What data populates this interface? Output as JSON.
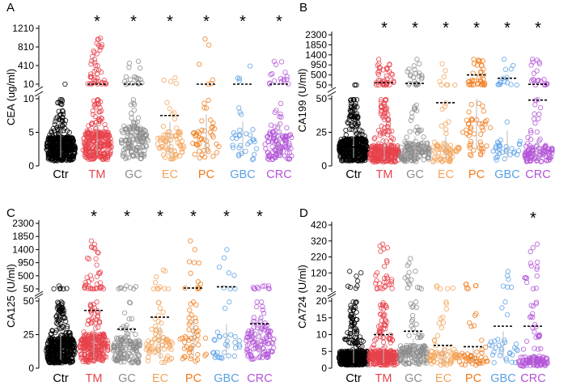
{
  "figure": {
    "categories": [
      "Ctr",
      "TM",
      "GC",
      "EC",
      "PC",
      "GBC",
      "CRC"
    ],
    "colors": [
      "#000000",
      "#e8424b",
      "#8c8c8c",
      "#f3a45c",
      "#f07a1a",
      "#5aa0e6",
      "#b354d8"
    ],
    "significance_marker": "*"
  },
  "chart_data": [
    {
      "panel": "A",
      "type": "scatter",
      "ylabel": "CEA (ug/ml)",
      "upper_ticks": [
        "10",
        "410",
        "810",
        "1210"
      ],
      "upper_range": [
        10,
        1210
      ],
      "lower_ticks": [
        "0",
        "5",
        "10"
      ],
      "lower_range": [
        0,
        10
      ],
      "star_categories": [
        "TM",
        "GC",
        "EC",
        "PC",
        "GBC",
        "CRC"
      ],
      "counts": [
        420,
        260,
        140,
        70,
        45,
        30,
        110
      ],
      "medians": [
        2.5,
        3.0,
        3.5,
        3.0,
        3.5,
        3.0,
        3.0
      ],
      "lower_means": [
        null,
        null,
        null,
        7.5,
        null,
        null,
        null
      ],
      "upper_means": [
        null,
        10,
        10,
        null,
        10,
        10,
        10
      ],
      "upper_counts": [
        1,
        45,
        20,
        4,
        6,
        4,
        16
      ],
      "spread_upper": [
        10,
        1000,
        500,
        150,
        980,
        400,
        500
      ]
    },
    {
      "panel": "B",
      "type": "scatter",
      "ylabel": "CA199 (U/ml)",
      "upper_ticks": [
        "50",
        "500",
        "950",
        "1400",
        "1850",
        "2300"
      ],
      "upper_range": [
        50,
        2300
      ],
      "lower_ticks": [
        "0",
        "25",
        "50"
      ],
      "lower_range": [
        0,
        50
      ],
      "star_categories": [
        "TM",
        "GC",
        "EC",
        "PC",
        "GBC",
        "CRC"
      ],
      "counts": [
        420,
        260,
        140,
        70,
        45,
        30,
        110
      ],
      "medians": [
        12,
        9,
        10,
        10,
        25,
        12,
        9
      ],
      "lower_means": [
        14,
        null,
        null,
        47,
        null,
        null,
        49
      ],
      "upper_means": [
        null,
        150,
        120,
        null,
        500,
        350,
        80
      ],
      "upper_counts": [
        3,
        40,
        25,
        8,
        35,
        15,
        20
      ],
      "spread_upper": [
        50,
        1200,
        1200,
        1000,
        1200,
        1200,
        1200
      ]
    },
    {
      "panel": "C",
      "type": "scatter",
      "ylabel": "CA125 (U/ml)",
      "upper_ticks": [
        "50",
        "500",
        "950",
        "1400",
        "1850",
        "2300"
      ],
      "upper_range": [
        50,
        2300
      ],
      "lower_ticks": [
        "0",
        "25",
        "50"
      ],
      "lower_range": [
        0,
        50
      ],
      "star_categories": [
        "TM",
        "GC",
        "EC",
        "PC",
        "GBC",
        "CRC"
      ],
      "counts": [
        420,
        260,
        140,
        70,
        45,
        30,
        110
      ],
      "medians": [
        13,
        15,
        13,
        14,
        17,
        15,
        18
      ],
      "lower_means": [
        null,
        43,
        29,
        38,
        null,
        null,
        33
      ],
      "upper_means": [
        null,
        null,
        null,
        null,
        80,
        120,
        null
      ],
      "upper_counts": [
        6,
        40,
        8,
        10,
        12,
        8,
        10
      ],
      "spread_upper": [
        150,
        1700,
        150,
        700,
        1700,
        1400,
        150
      ]
    },
    {
      "panel": "D",
      "type": "scatter",
      "ylabel": "CA724 (U/ml)",
      "upper_ticks": [
        "20",
        "120",
        "220",
        "320",
        "420"
      ],
      "upper_range": [
        20,
        420
      ],
      "lower_ticks": [
        "0",
        "5",
        "10",
        "15",
        "20"
      ],
      "lower_range": [
        0,
        20
      ],
      "star_categories": [
        "CRC"
      ],
      "counts": [
        420,
        260,
        140,
        70,
        45,
        30,
        110
      ],
      "medians": [
        3,
        3,
        4,
        3,
        3,
        5,
        2
      ],
      "lower_means": [
        8.8,
        10,
        11,
        6.8,
        6.4,
        12.5,
        12.5
      ],
      "upper_means": [
        null,
        null,
        null,
        null,
        null,
        null,
        null
      ],
      "upper_counts": [
        8,
        30,
        15,
        5,
        6,
        6,
        15
      ],
      "spread_upper": [
        130,
        300,
        210,
        40,
        50,
        130,
        300
      ]
    }
  ]
}
